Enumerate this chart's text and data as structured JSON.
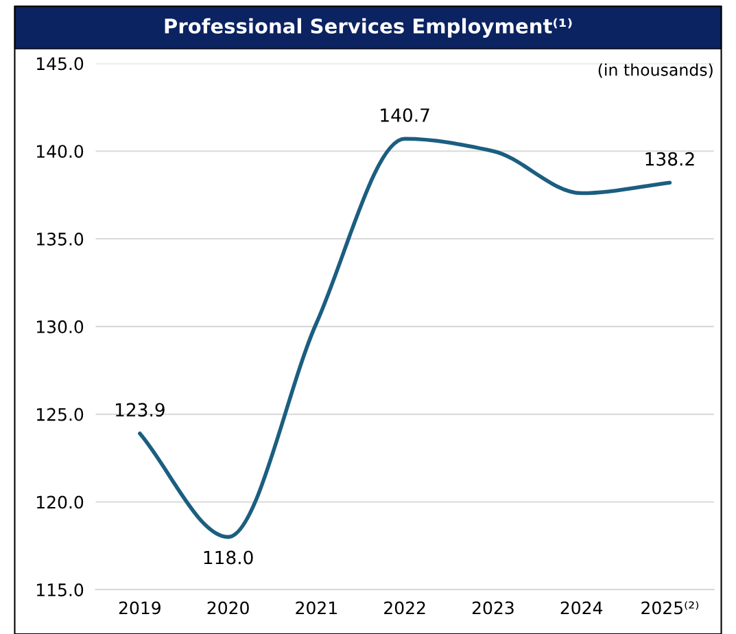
{
  "chart_data": {
    "type": "line",
    "title": "Professional Services Employment⁽¹⁾",
    "categories": [
      "2019",
      "2020",
      "2021",
      "2022",
      "2023",
      "2024",
      "2025⁽²⁾"
    ],
    "series": [
      {
        "color": "#1b5e80",
        "values": [
          123.9,
          118.0,
          130.2,
          140.7,
          140.0,
          137.6,
          138.2
        ],
        "value_labels": [
          "123.9",
          "118.0",
          null,
          "140.7",
          null,
          null,
          "138.2"
        ]
      }
    ],
    "ylim": [
      115.0,
      145.0
    ],
    "yticks": [
      {
        "value": 115,
        "label": "115.0"
      },
      {
        "value": 120,
        "label": "120.0"
      },
      {
        "value": 125,
        "label": "125.0"
      },
      {
        "value": 130,
        "label": "130.0"
      },
      {
        "value": 135,
        "label": "135.0"
      },
      {
        "value": 140,
        "label": "140.0"
      },
      {
        "value": 145,
        "label": "145.0"
      }
    ],
    "grid": "y",
    "marker": "none",
    "line_style": "solid",
    "annotations": [
      "(in thousands)"
    ]
  }
}
